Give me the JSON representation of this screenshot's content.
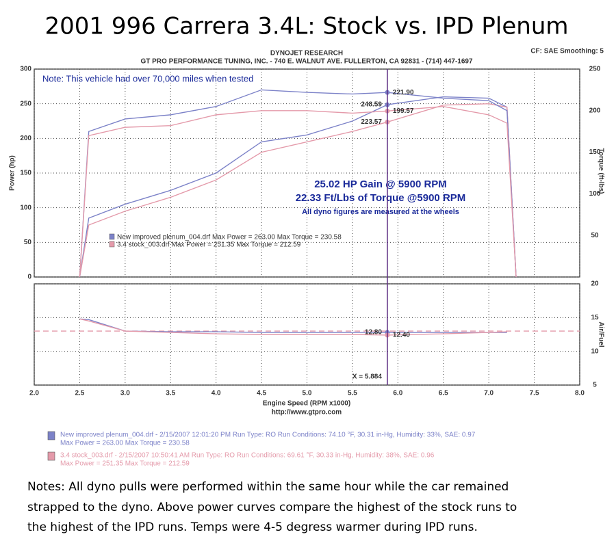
{
  "title": "2001 996 Carrera 3.4L: Stock vs. IPD Plenum",
  "header": {
    "company": "DYNOJET RESEARCH",
    "address": "GT PRO PERFORMANCE TUNING, INC. - 740 E. WALNUT AVE. FULLERTON, CA 92831 - (714) 447-1697",
    "settings": "CF: SAE  Smoothing: 5"
  },
  "chart_data": [
    {
      "type": "line",
      "note": "Note: This vehicle had over 70,000 miles when tested",
      "annotations": [
        "25.02 HP Gain @ 5900 RPM",
        "22.33 Ft/Lbs of Torque @5900 RPM",
        "All dyno figures are measured at the wheels"
      ],
      "ylabel": "Power (hp)",
      "y2label": "Torque (ft-lbs)",
      "legend_entries": [
        {
          "label": "New improved plenum_004.drf Max Power = 263.00    Max Torque = 230.58",
          "color": "#7c82c8"
        },
        {
          "label": "3.4 stock_003.drf Max Power = 251.35    Max Torque = 212.59",
          "color": "#e49aaa"
        }
      ],
      "x": [
        2.5,
        2.6,
        3.0,
        3.5,
        4.0,
        4.5,
        5.0,
        5.5,
        5.884,
        6.5,
        7.0,
        7.2,
        7.3
      ],
      "series": [
        {
          "color": "#7c82c8",
          "axis": "y",
          "values": [
            0,
            85,
            105,
            125,
            150,
            195,
            205,
            225,
            248.59,
            260,
            258,
            245,
            0
          ],
          "value_labels": [
            null,
            null,
            null,
            null,
            null,
            null,
            null,
            null,
            "248.59",
            null,
            null,
            null,
            null
          ]
        },
        {
          "color": "#e49aaa",
          "axis": "y",
          "values": [
            0,
            75,
            95,
            115,
            140,
            180,
            195,
            210,
            223.57,
            248,
            250,
            245,
            0
          ],
          "value_labels": [
            null,
            null,
            null,
            null,
            null,
            null,
            null,
            null,
            "223.57",
            null,
            null,
            null,
            null
          ]
        },
        {
          "color": "#7c82c8",
          "axis": "y2",
          "values": [
            0,
            175,
            190,
            195,
            205,
            225,
            222,
            220,
            221.9,
            215,
            212,
            200,
            0
          ],
          "value_labels": [
            null,
            null,
            null,
            null,
            null,
            null,
            null,
            null,
            "221.90",
            null,
            null,
            null,
            null
          ]
        },
        {
          "color": "#e49aaa",
          "axis": "y2",
          "values": [
            0,
            170,
            180,
            182,
            195,
            200,
            200,
            197,
            199.57,
            205,
            195,
            185,
            0
          ],
          "value_labels": [
            null,
            null,
            null,
            null,
            null,
            null,
            null,
            null,
            "199.57",
            null,
            null,
            null,
            null
          ]
        }
      ],
      "xlim": [
        2,
        8
      ],
      "xticks": [
        2,
        2.5,
        3,
        3.5,
        4,
        4.5,
        5,
        5.5,
        6,
        6.5,
        7,
        7.5,
        8
      ],
      "ylim": [
        0,
        300
      ],
      "yticks": [
        0,
        50,
        100,
        150,
        200,
        250,
        300
      ],
      "y2lim": [
        0,
        250
      ],
      "y2ticks": [
        50,
        100,
        150,
        200,
        250
      ],
      "grid": true
    },
    {
      "type": "line",
      "xlabel": "Engine Speed (RPM x1000)",
      "ylabel": "Air/Fuel",
      "cursor": {
        "value": 5.884,
        "label": "X = 5.884"
      },
      "reference_y": 13,
      "x": [
        2.5,
        2.6,
        3.0,
        3.5,
        4.0,
        4.5,
        5.0,
        5.5,
        5.884,
        6.5,
        7.0,
        7.2,
        7.3
      ],
      "series": [
        {
          "color": "#7c82c8",
          "values": [
            14.8,
            14.7,
            13.0,
            12.9,
            12.9,
            12.8,
            12.8,
            12.8,
            12.8,
            12.8,
            12.8,
            12.8,
            null
          ],
          "value_labels": [
            null,
            null,
            null,
            null,
            null,
            null,
            null,
            null,
            "12.80",
            null,
            null,
            null,
            null
          ]
        },
        {
          "color": "#e49aaa",
          "values": [
            14.8,
            14.5,
            13.0,
            12.8,
            12.6,
            12.5,
            12.5,
            12.5,
            12.4,
            12.6,
            12.8,
            12.9,
            null
          ],
          "value_labels": [
            null,
            null,
            null,
            null,
            null,
            null,
            null,
            null,
            "12.40",
            null,
            null,
            null,
            null
          ]
        }
      ],
      "xlim": [
        2,
        8
      ],
      "xticks": [
        {
          "value": 2,
          "label": "2.0"
        },
        2.5,
        {
          "value": 3,
          "label": "3.0"
        },
        3.5,
        {
          "value": 4,
          "label": "4.0"
        },
        4.5,
        {
          "value": 5,
          "label": "5.0"
        },
        5.5,
        {
          "value": 6,
          "label": "6.0"
        },
        6.5,
        {
          "value": 7,
          "label": "7.0"
        },
        7.5,
        {
          "value": 8,
          "label": "8.0"
        }
      ],
      "ylim": [
        5,
        20
      ],
      "yticks": [
        5,
        10,
        15,
        20
      ],
      "grid": true
    }
  ],
  "footer": {
    "url": "http://www.gtpro.com",
    "runs": [
      {
        "line1": "New improved plenum_004.drf - 2/15/2007 12:01:20 PM  Run Type: RO  Run Conditions: 74.10 °F, 30.31 in-Hg,  Humidity:  33%, SAE: 0.97",
        "line2": "Max Power = 263.00  Max Torque = 230.58",
        "color": "#7c82c8"
      },
      {
        "line1": "3.4 stock_003.drf - 2/15/2007 10:50:41 AM  Run Type: RO  Run Conditions: 69.61 °F, 30.33 in-Hg,  Humidity:  38%, SAE: 0.96",
        "line2": "Max Power = 251.35  Max Torque = 212.59",
        "color": "#e49aaa"
      }
    ]
  },
  "notes": [
    "Notes: All dyno pulls were performed within the same hour while the car remained",
    "strapped to the dyno. Above power curves compare the highest of the stock runs to",
    "the highest of the IPD runs. Temps were 4-5 degress warmer during IPD runs."
  ]
}
